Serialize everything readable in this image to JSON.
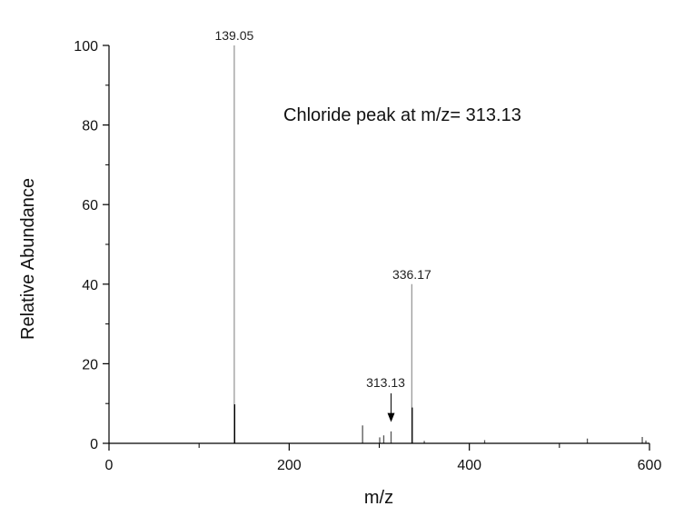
{
  "chart_data": {
    "type": "bar",
    "title": "",
    "xlabel": "m/z",
    "ylabel": "Relative Abundance",
    "xlim": [
      0,
      600
    ],
    "ylim": [
      0,
      100
    ],
    "xticks": [
      0,
      200,
      400,
      600
    ],
    "yticks": [
      0,
      20,
      40,
      60,
      80,
      100
    ],
    "grid": false,
    "annotation": "Chloride peak at m/z= 313.13",
    "peak_labels": [
      {
        "label": "139.05",
        "x": 139.05,
        "y": 100
      },
      {
        "label": "336.17",
        "x": 336.17,
        "y": 40
      },
      {
        "label": "313.13",
        "x": 313.13,
        "y": 3.5,
        "arrow": true
      }
    ],
    "peaks": [
      {
        "x": 139.05,
        "y": 100,
        "color": "#9a9a9a"
      },
      {
        "x": 139.5,
        "y": 9.8,
        "color": "#000000"
      },
      {
        "x": 336.17,
        "y": 40,
        "color": "#9a9a9a"
      },
      {
        "x": 336.6,
        "y": 9.0,
        "color": "#000000"
      },
      {
        "x": 281.5,
        "y": 4.5,
        "color": "#555555"
      },
      {
        "x": 300.5,
        "y": 1.5,
        "color": "#555555"
      },
      {
        "x": 305.0,
        "y": 2.0,
        "color": "#555555"
      },
      {
        "x": 313.13,
        "y": 3.0,
        "color": "#555555"
      },
      {
        "x": 350.0,
        "y": 0.6,
        "color": "#555555"
      },
      {
        "x": 417.0,
        "y": 0.8,
        "color": "#555555"
      },
      {
        "x": 531.0,
        "y": 1.2,
        "color": "#555555"
      },
      {
        "x": 592.0,
        "y": 1.6,
        "color": "#555555"
      },
      {
        "x": 596.0,
        "y": 0.7,
        "color": "#555555"
      }
    ]
  }
}
